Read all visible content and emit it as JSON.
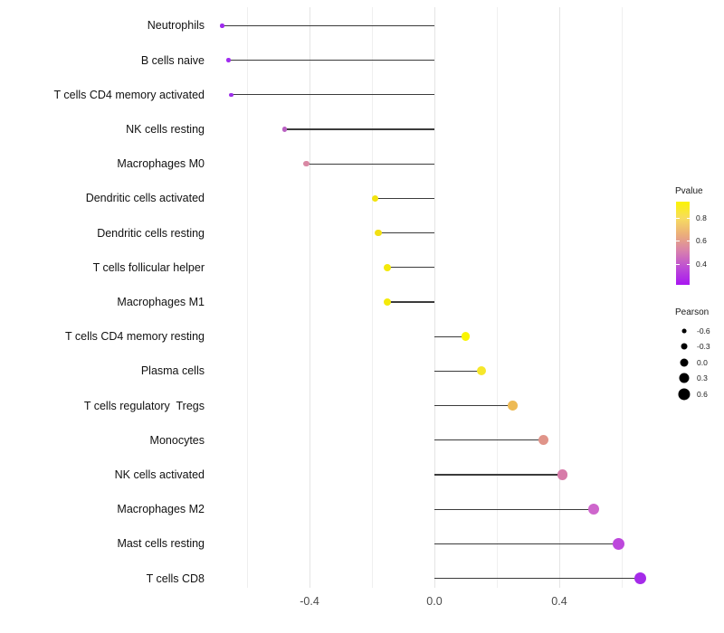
{
  "chart_data": {
    "type": "scatter",
    "subtype": "lollipop",
    "title": "",
    "xlabel": "",
    "ylabel": "",
    "x_tick_labels": [
      "-0.4",
      "0.0",
      "0.4"
    ],
    "x_ticks_major": [
      -0.4,
      0.0,
      0.4
    ],
    "x_ticks_minor": [
      -0.6,
      -0.2,
      0.2,
      0.6
    ],
    "x_range": [
      -0.735,
      0.715
    ],
    "grid": "vertical-only",
    "legend_position": "right",
    "categories": [
      "Neutrophils",
      "B cells naive",
      "T cells CD4 memory activated",
      "NK cells resting",
      "Macrophages M0",
      "Dendritic cells activated",
      "Dendritic cells resting",
      "T cells follicular helper",
      "Macrophages M1",
      "T cells CD4 memory resting",
      "Plasma cells",
      "T cells regulatory  Tregs",
      "Monocytes",
      "NK cells activated",
      "Macrophages M2",
      "Mast cells resting",
      "T cells CD8"
    ],
    "series": [
      {
        "name": "Pearson correlation with P-value color",
        "points": [
          {
            "category": "Neutrophils",
            "pearson": -0.68,
            "pvalue": 0.27,
            "color": "#9F2BEE"
          },
          {
            "category": "B cells naive",
            "pearson": -0.66,
            "pvalue": 0.27,
            "color": "#A02CF0"
          },
          {
            "category": "T cells CD4 memory activated",
            "pearson": -0.65,
            "pvalue": 0.28,
            "color": "#9D30E9"
          },
          {
            "category": "NK cells resting",
            "pearson": -0.48,
            "pvalue": 0.42,
            "color": "#B95FC2"
          },
          {
            "category": "Macrophages M0",
            "pearson": -0.41,
            "pvalue": 0.55,
            "color": "#D988A4"
          },
          {
            "category": "Dendritic cells activated",
            "pearson": -0.19,
            "pvalue": 0.83,
            "color": "#F2E30E"
          },
          {
            "category": "Dendritic cells resting",
            "pearson": -0.18,
            "pvalue": 0.82,
            "color": "#F2E013"
          },
          {
            "category": "T cells follicular helper",
            "pearson": -0.15,
            "pvalue": 0.85,
            "color": "#F4E90B"
          },
          {
            "category": "Macrophages M1",
            "pearson": -0.15,
            "pvalue": 0.85,
            "color": "#F4EA0A"
          },
          {
            "category": "T cells CD4 memory resting",
            "pearson": 0.1,
            "pvalue": 0.92,
            "color": "#FAF502"
          },
          {
            "category": "Plasma cells",
            "pearson": 0.15,
            "pvalue": 0.84,
            "color": "#F6E72B"
          },
          {
            "category": "T cells regulatory  Tregs",
            "pearson": 0.25,
            "pvalue": 0.72,
            "color": "#EDBA55"
          },
          {
            "category": "Monocytes",
            "pearson": 0.35,
            "pvalue": 0.6,
            "color": "#E09489"
          },
          {
            "category": "NK cells activated",
            "pearson": 0.41,
            "pvalue": 0.5,
            "color": "#D77BA9"
          },
          {
            "category": "Macrophages M2",
            "pearson": 0.51,
            "pvalue": 0.42,
            "color": "#CE66CC"
          },
          {
            "category": "Mast cells resting",
            "pearson": 0.59,
            "pvalue": 0.33,
            "color": "#BD48DC"
          },
          {
            "category": "T cells CD8",
            "pearson": 0.66,
            "pvalue": 0.28,
            "color": "#A52BE9"
          }
        ]
      }
    ],
    "legends": {
      "pvalue": {
        "title": "Pvalue",
        "tick_values": [
          0.8,
          0.6,
          0.4
        ],
        "tick_labels": [
          "0.8",
          "0.6",
          "0.4"
        ],
        "bar_value_top": 0.94,
        "bar_value_bottom": 0.22,
        "gradient_top_to_bottom": [
          "#FBF402",
          "#F7DC60",
          "#EBAD7B",
          "#D77FAE",
          "#BC4BD6",
          "#A816F1"
        ]
      },
      "pearson": {
        "title": "Pearson",
        "size_values": [
          -0.6,
          -0.3,
          0.0,
          0.3,
          0.6
        ],
        "size_labels": [
          "-0.6",
          "-0.3",
          "0.0",
          "0.3",
          "0.6"
        ],
        "dot_color": "#000000"
      }
    },
    "colors": {
      "stem": "#3b3b3b",
      "grid_major": "#e4e4e4",
      "grid_minor": "#efefef",
      "axis_text": "#4a4a4a",
      "background": "#ffffff"
    }
  }
}
